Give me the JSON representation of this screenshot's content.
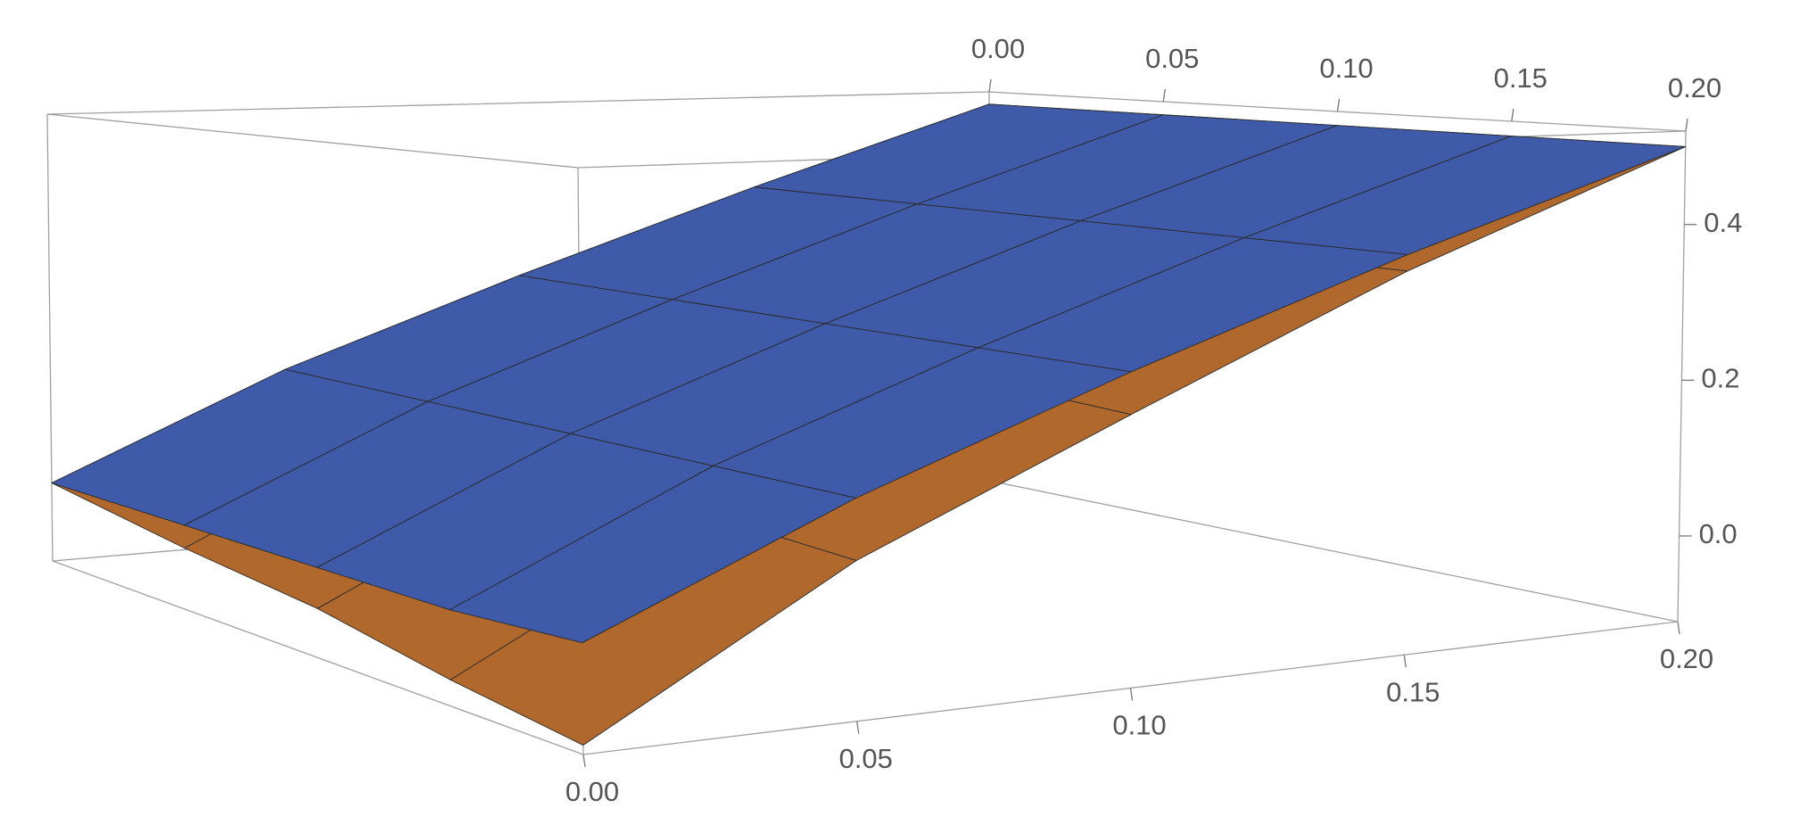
{
  "chart_data": {
    "type": "surface3d",
    "x": [
      0,
      0.05,
      0.1,
      0.15,
      0.2
    ],
    "y": [
      0,
      0.05,
      0.1,
      0.15,
      0.2
    ],
    "xlim": [
      0,
      0.2
    ],
    "ylim": [
      0,
      0.2
    ],
    "zlim": [
      -0.11,
      0.52
    ],
    "xticks": [
      {
        "value": 0,
        "label": "0.00"
      },
      0.05,
      {
        "value": 0.1,
        "label": "0.10"
      },
      0.15,
      {
        "value": 0.2,
        "label": "0.20"
      }
    ],
    "yticks": [
      {
        "value": 0,
        "label": "0.00"
      },
      0.05,
      {
        "value": 0.1,
        "label": "0.10"
      },
      0.15,
      {
        "value": 0.2,
        "label": "0.20"
      }
    ],
    "zticks": [
      {
        "value": 0,
        "label": "0.0"
      },
      0.2,
      0.4
    ],
    "series": [
      {
        "color": "#b0682c",
        "z": [
          [
            0,
            0.14,
            0.26,
            0.38,
            0.5
          ],
          [
            -0.03,
            0.12,
            0.25,
            0.37,
            0.5
          ],
          [
            -0.05,
            0.1,
            0.24,
            0.37,
            0.5
          ],
          [
            -0.08,
            0.08,
            0.22,
            0.36,
            0.5
          ],
          [
            -0.1,
            0.07,
            0.21,
            0.36,
            0.5
          ]
        ]
      },
      {
        "color": "#3e5aa8",
        "z": [
          [
            0,
            0.14,
            0.26,
            0.38,
            0.5
          ],
          [
            0,
            0.14,
            0.26,
            0.38,
            0.5
          ],
          [
            0,
            0.14,
            0.26,
            0.38,
            0.5
          ],
          [
            0,
            0.14,
            0.26,
            0.38,
            0.5
          ],
          [
            0.01,
            0.14,
            0.26,
            0.38,
            0.5
          ]
        ]
      }
    ]
  }
}
